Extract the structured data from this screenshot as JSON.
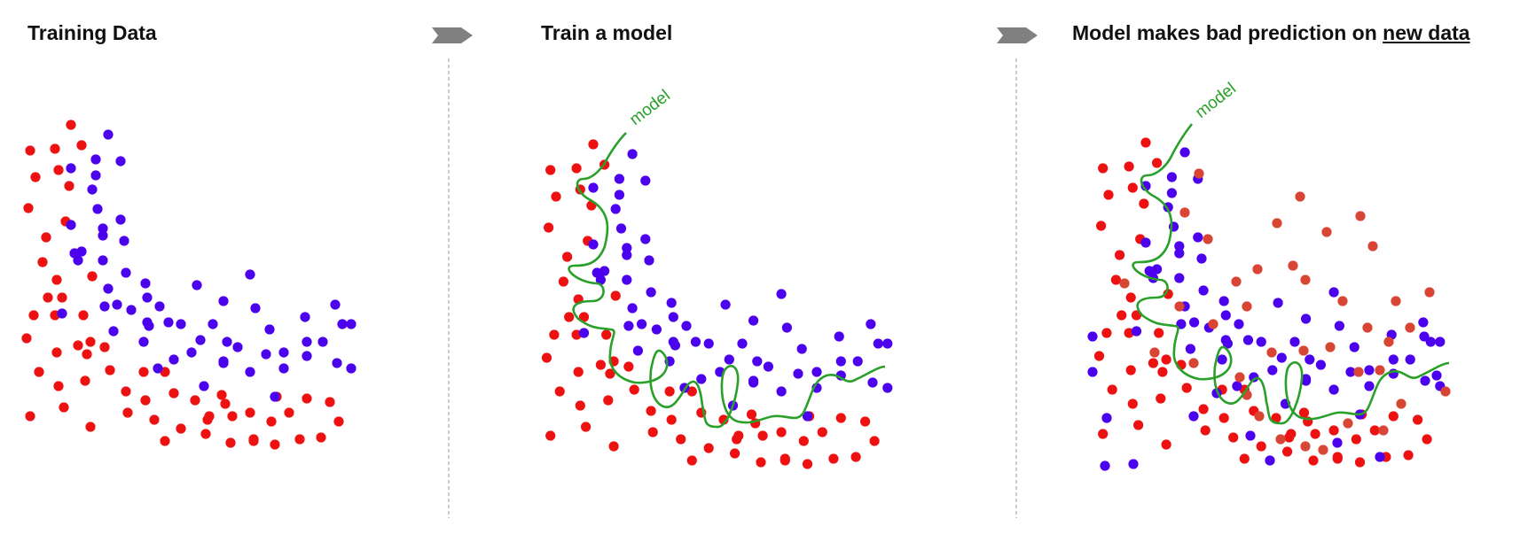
{
  "panels": [
    {
      "title": "Training Data"
    },
    {
      "title": "Train a  model",
      "model_label": "model"
    },
    {
      "title_prefix": "Model makes bad prediction on ",
      "title_emph": "new data",
      "model_label": "model"
    }
  ],
  "colors": {
    "class_a": "#ee1111",
    "class_b": "#4b00ee",
    "new_red": "#d94535",
    "model": "#2aa02a",
    "arrow": "#808080",
    "divider": "#aaaaaa"
  },
  "icons": [
    "right-arrow-icon",
    "right-arrow-icon"
  ]
}
